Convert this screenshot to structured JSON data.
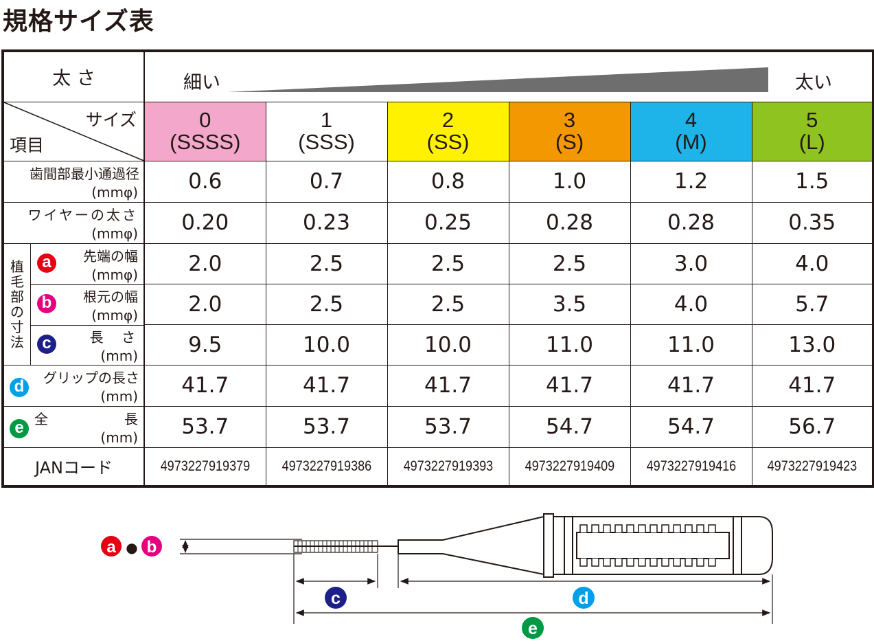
{
  "title": "規格サイズ表",
  "header": {
    "thickness_label": "太 さ",
    "thin_label": "細い",
    "thick_label": "太い",
    "size_label": "サイズ",
    "item_label": "項目"
  },
  "sizes": [
    {
      "num": "0",
      "code": "(SSSS)",
      "color": "#f2a7cb"
    },
    {
      "num": "1",
      "code": "(SSS)",
      "color": "#ffffff"
    },
    {
      "num": "2",
      "code": "(SS)",
      "color": "#fff100"
    },
    {
      "num": "3",
      "code": "(S)",
      "color": "#f39800"
    },
    {
      "num": "4",
      "code": "(M)",
      "color": "#1eb4ea"
    },
    {
      "num": "5",
      "code": "(L)",
      "color": "#8fc31f"
    }
  ],
  "rows": {
    "diameter": {
      "label": "歯間部最小通過径",
      "unit": "(mmφ)",
      "values": [
        "0.6",
        "0.7",
        "0.8",
        "1.0",
        "1.2",
        "1.5"
      ]
    },
    "wire": {
      "label": "ワイヤーの太さ",
      "unit": "(mmφ)",
      "values": [
        "0.20",
        "0.23",
        "0.25",
        "0.28",
        "0.28",
        "0.35"
      ]
    },
    "bristle_group_label": [
      "植",
      "毛",
      "部",
      "の",
      "寸",
      "法"
    ],
    "tip_width": {
      "marker": "a",
      "label": "先端の幅",
      "unit": "(mmφ)",
      "values": [
        "2.0",
        "2.5",
        "2.5",
        "2.5",
        "3.0",
        "4.0"
      ]
    },
    "base_width": {
      "marker": "b",
      "label": "根元の幅",
      "unit": "(mmφ)",
      "values": [
        "2.0",
        "2.5",
        "2.5",
        "3.5",
        "4.0",
        "5.7"
      ]
    },
    "length": {
      "marker": "c",
      "label": "長 さ",
      "unit": "(mm)",
      "values": [
        "9.5",
        "10.0",
        "10.0",
        "11.0",
        "11.0",
        "13.0"
      ]
    },
    "grip": {
      "marker": "d",
      "label": "グリップの長さ",
      "unit": "(mm)",
      "values": [
        "41.7",
        "41.7",
        "41.7",
        "41.7",
        "41.7",
        "41.7"
      ]
    },
    "total": {
      "marker": "e",
      "label_left": "全",
      "label_right": "長",
      "unit": "(mm)",
      "values": [
        "53.7",
        "53.7",
        "53.7",
        "54.7",
        "54.7",
        "56.7"
      ]
    },
    "jan": {
      "label": "JANコード",
      "values": [
        "4973227919379",
        "4973227919386",
        "4973227919393",
        "4973227919409",
        "4973227919416",
        "4973227919423"
      ]
    }
  },
  "diagram": {
    "ab_marker_a": "a",
    "ab_separator": "●",
    "ab_marker_b": "b",
    "c_marker": "c",
    "d_marker": "d",
    "e_marker": "e"
  },
  "colors": {
    "marker_a": "#e60012",
    "marker_b": "#e4007f",
    "marker_c": "#1d2088",
    "marker_d": "#00a0e9",
    "marker_e": "#009944",
    "wedge": "#6e6e6e"
  }
}
